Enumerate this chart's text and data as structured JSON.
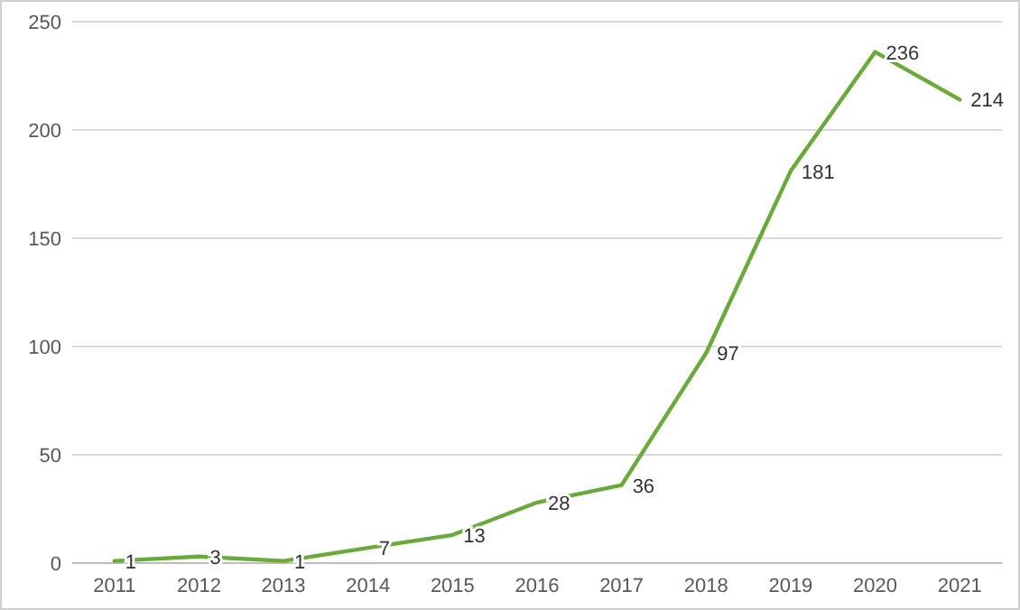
{
  "chart_data": {
    "type": "line",
    "categories": [
      "2011",
      "2012",
      "2013",
      "2014",
      "2015",
      "2016",
      "2017",
      "2018",
      "2019",
      "2020",
      "2021"
    ],
    "series": [
      {
        "color": "#6aaa3a",
        "values": [
          1,
          3,
          1,
          7,
          13,
          28,
          36,
          97,
          181,
          236,
          214
        ]
      }
    ],
    "ylim": [
      0,
      250
    ],
    "yticks": [
      0,
      50,
      100,
      150,
      200,
      250
    ],
    "grid": "y",
    "data_labels": true,
    "marker": "none",
    "line_style": "solid"
  }
}
